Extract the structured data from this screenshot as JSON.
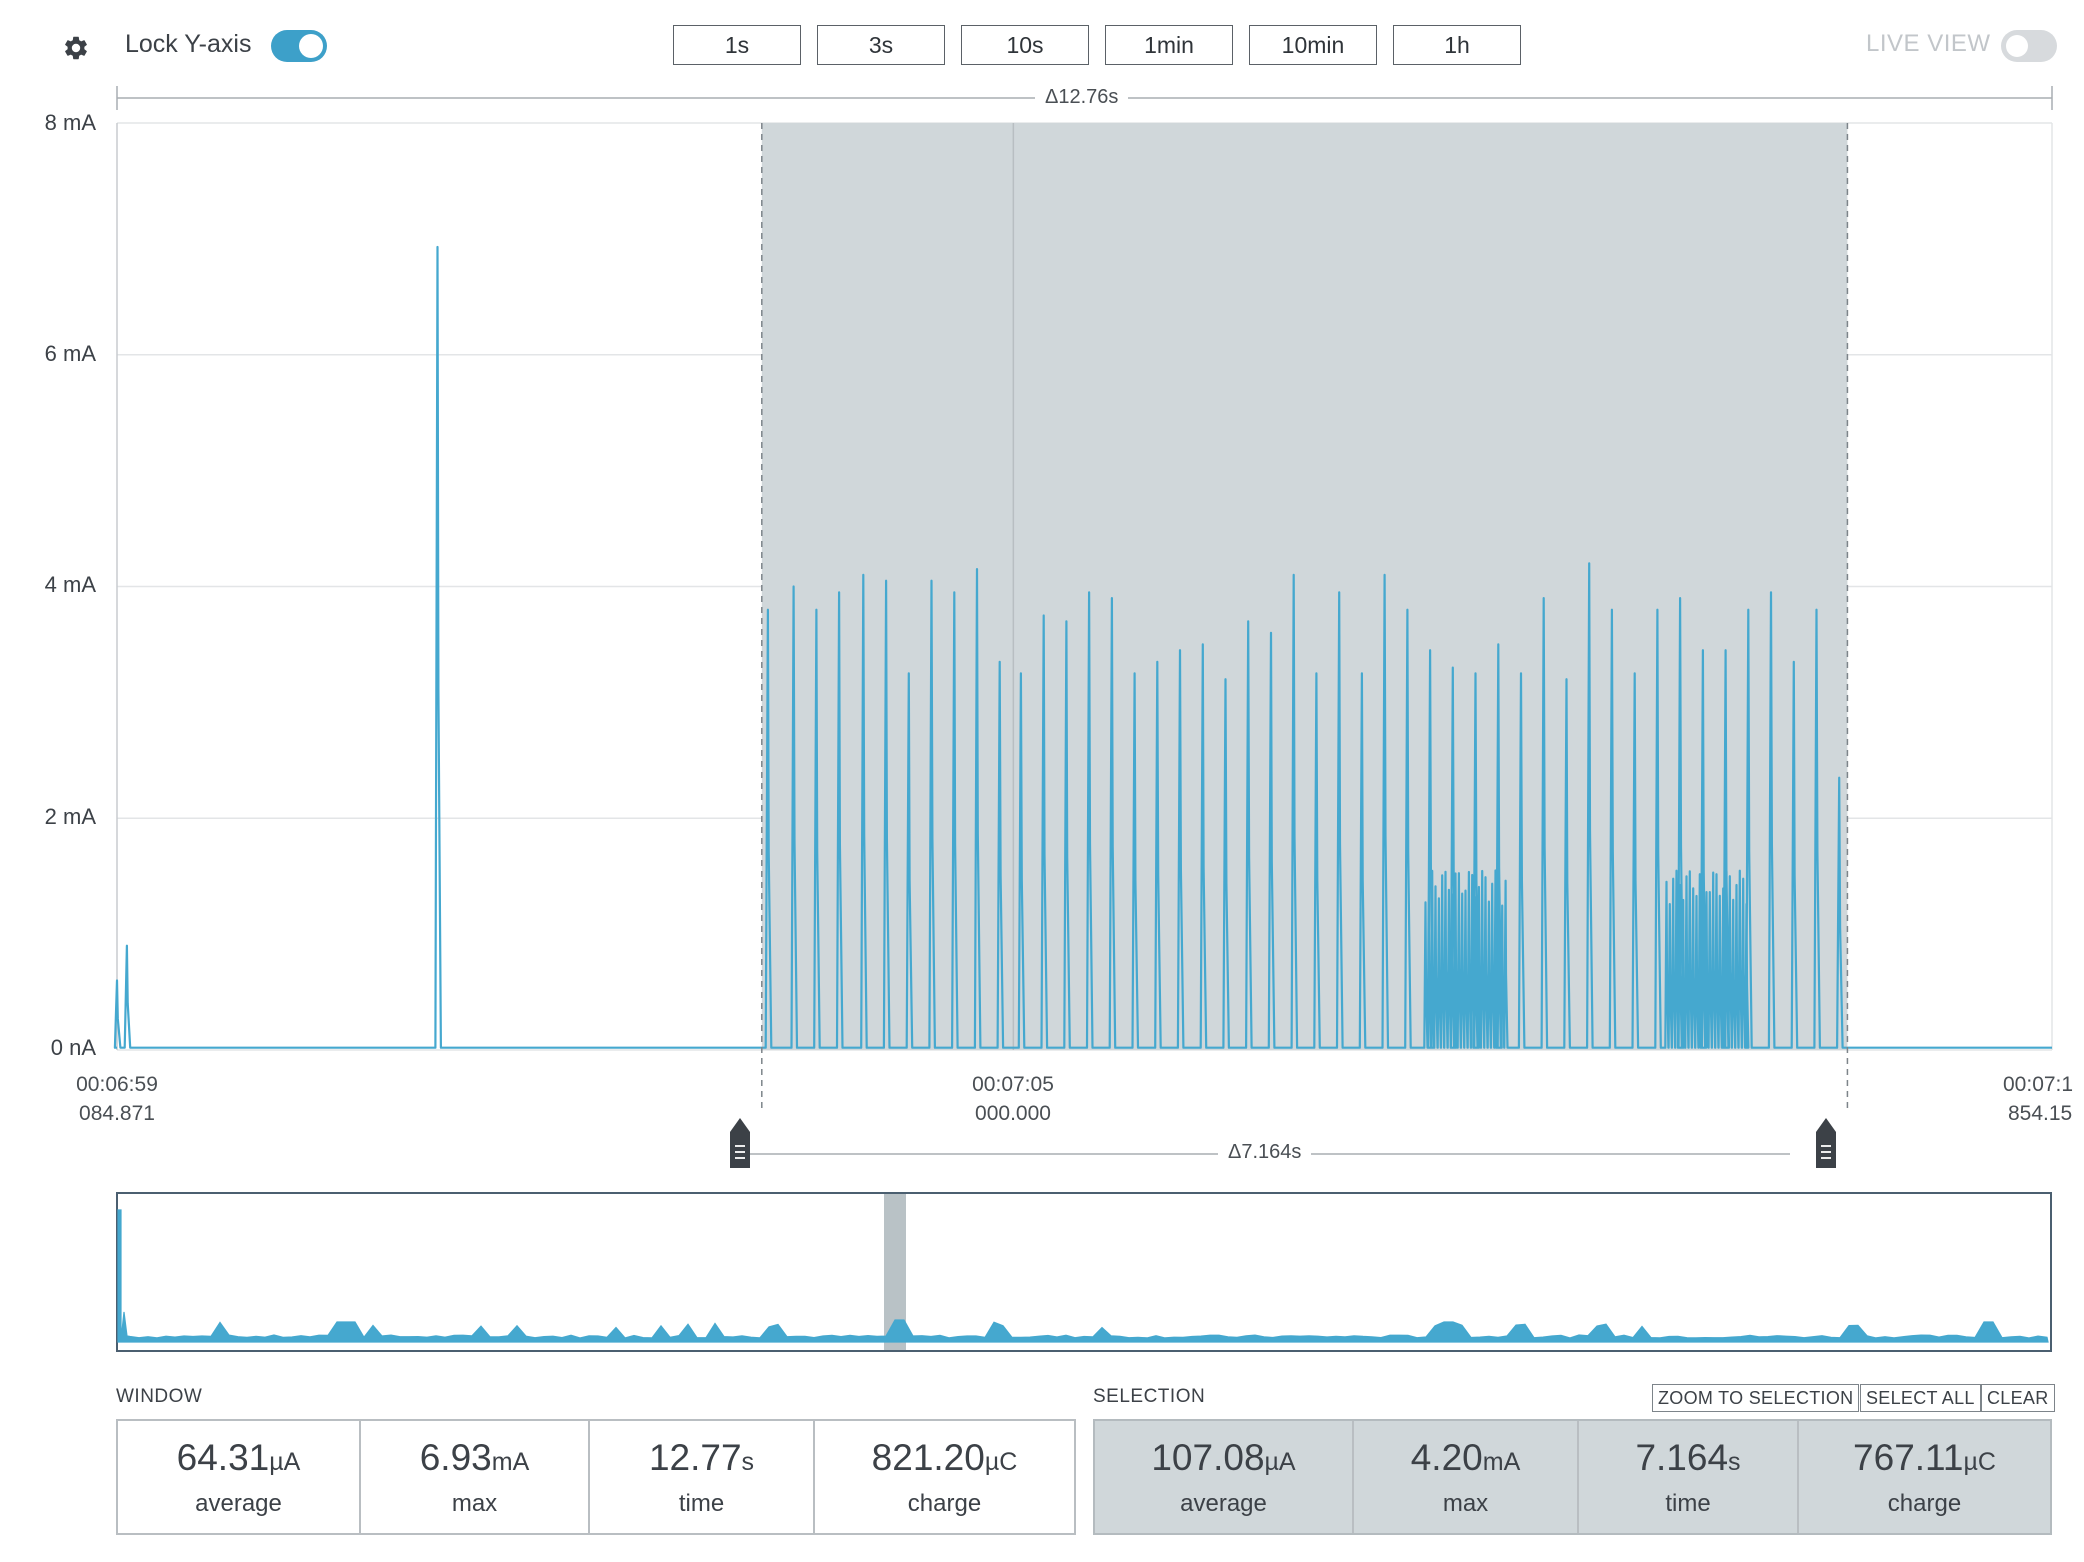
{
  "toolbar": {
    "settings_icon": "gear-icon",
    "lock_y_axis_label": "Lock Y-axis",
    "lock_y_axis_on": true,
    "time_ranges": [
      "1s",
      "3s",
      "10s",
      "1min",
      "10min",
      "1h"
    ],
    "live_view_label": "LIVE VIEW",
    "live_view_on": false
  },
  "chart": {
    "window_delta": "Δ12.76s",
    "selection_delta": "Δ7.164s",
    "selection_handle_icon": "selection-handle-icon",
    "x_labels": [
      {
        "time": "00:06:59",
        "sub": "084.871"
      },
      {
        "time": "00:07:05",
        "sub": "000.000"
      },
      {
        "time": "00:07:1",
        "sub": "854.15"
      }
    ],
    "colors": {
      "trace": "#45a8cf",
      "selection": "#d0d7da"
    }
  },
  "chart_data": {
    "type": "line",
    "title": "",
    "xlabel": "",
    "ylabel": "",
    "y_ticks": [
      "0 nA",
      "2 mA",
      "4 mA",
      "6 mA",
      "8 mA"
    ],
    "ylim": [
      0,
      8
    ],
    "y_unit": "mA",
    "x_range_s": [
      -5.915,
      6.854
    ],
    "selection_range_s": [
      -1.66,
      5.504
    ],
    "grid": true,
    "series": [
      {
        "spikes_s_mA": [
          [
            -5.915,
            0.6
          ],
          [
            -5.85,
            0.9
          ],
          [
            -3.8,
            6.93
          ],
          [
            -1.62,
            3.8
          ],
          [
            -1.45,
            4.0
          ],
          [
            -1.3,
            3.8
          ],
          [
            -1.15,
            3.95
          ],
          [
            -0.99,
            4.1
          ],
          [
            -0.84,
            4.05
          ],
          [
            -0.69,
            3.25
          ],
          [
            -0.54,
            4.05
          ],
          [
            -0.39,
            3.95
          ],
          [
            -0.24,
            4.15
          ],
          [
            -0.09,
            3.35
          ],
          [
            0.05,
            3.25
          ],
          [
            0.2,
            3.75
          ],
          [
            0.35,
            3.7
          ],
          [
            0.5,
            3.95
          ],
          [
            0.65,
            3.9
          ],
          [
            0.8,
            3.25
          ],
          [
            0.95,
            3.35
          ],
          [
            1.1,
            3.45
          ],
          [
            1.25,
            3.5
          ],
          [
            1.4,
            3.2
          ],
          [
            1.55,
            3.7
          ],
          [
            1.7,
            3.6
          ],
          [
            1.85,
            4.1
          ],
          [
            2.0,
            3.25
          ],
          [
            2.15,
            3.95
          ],
          [
            2.3,
            3.25
          ],
          [
            2.45,
            4.1
          ],
          [
            2.6,
            3.8
          ],
          [
            2.75,
            3.45
          ],
          [
            2.9,
            3.3
          ],
          [
            3.05,
            3.25
          ],
          [
            3.2,
            3.5
          ],
          [
            3.35,
            3.25
          ],
          [
            3.5,
            3.9
          ],
          [
            3.65,
            3.2
          ],
          [
            3.8,
            4.2
          ],
          [
            3.95,
            3.8
          ],
          [
            4.1,
            3.25
          ],
          [
            4.25,
            3.8
          ],
          [
            4.4,
            3.9
          ],
          [
            4.55,
            3.45
          ],
          [
            4.7,
            3.45
          ],
          [
            4.85,
            3.8
          ],
          [
            5.0,
            3.95
          ],
          [
            5.15,
            3.35
          ],
          [
            5.3,
            3.8
          ],
          [
            5.45,
            2.35
          ]
        ],
        "bursts_s": [
          [
            2.71,
            3.25
          ],
          [
            4.3,
            4.85
          ]
        ],
        "burst_level_mA": 1.55
      }
    ]
  },
  "stats": {
    "window_label": "WINDOW",
    "selection_label": "SELECTION",
    "buttons": {
      "zoom": "ZOOM TO SELECTION",
      "select_all": "SELECT ALL",
      "clear": "CLEAR"
    },
    "window": [
      {
        "value": "64.31",
        "unit": "µA",
        "name": "average"
      },
      {
        "value": "6.93",
        "unit": "mA",
        "name": "max"
      },
      {
        "value": "12.77",
        "unit": "s",
        "name": "time"
      },
      {
        "value": "821.20",
        "unit": "µC",
        "name": "charge"
      }
    ],
    "selection": [
      {
        "value": "107.08",
        "unit": "µA",
        "name": "average"
      },
      {
        "value": "4.20",
        "unit": "mA",
        "name": "max"
      },
      {
        "value": "7.164",
        "unit": "s",
        "name": "time"
      },
      {
        "value": "767.11",
        "unit": "µC",
        "name": "charge"
      }
    ]
  }
}
